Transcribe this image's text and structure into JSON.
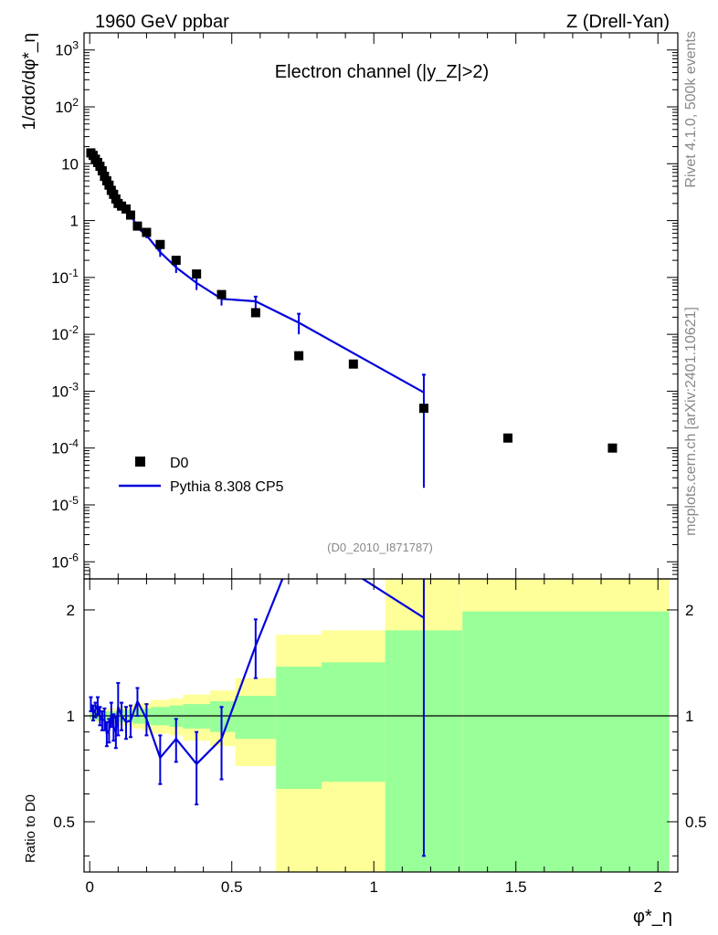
{
  "header": {
    "left": "1960 GeV ppbar",
    "right": "Z (Drell-Yan)"
  },
  "side_text": {
    "rivet": "Rivet 4.1.0,  500k events",
    "mcplots": "mcplots.cern.ch [arXiv:2401.10621]"
  },
  "colors": {
    "data_marker": "#000000",
    "mc_line": "#0000dd",
    "band_outer": "#ffff99",
    "band_inner": "#99ff99"
  },
  "chart_data": [
    {
      "type": "scatter",
      "title": "Electron channel (|y_Z|>2)",
      "annotation": "(D0_2010_I871787)",
      "ylabel": "1/σdσ/dφ*_η",
      "yscale": "log",
      "ylim": [
        5e-07,
        2000
      ],
      "xlim": [
        -0.02,
        2.07
      ],
      "ytick_labels": [
        "10^-6",
        "10^-5",
        "10^-4",
        "10^-3",
        "10^-2",
        "10^-1",
        "1",
        "10",
        "10^2",
        "10^3"
      ],
      "legend": {
        "position": "bottom-left",
        "entries": [
          "D0",
          "Pythia 8.308 CP5"
        ]
      },
      "series": [
        {
          "name": "D0",
          "style": "markers",
          "x": [
            0.004,
            0.012,
            0.02,
            0.028,
            0.036,
            0.044,
            0.052,
            0.06,
            0.068,
            0.076,
            0.084,
            0.092,
            0.1,
            0.112,
            0.128,
            0.144,
            0.168,
            0.2,
            0.248,
            0.304,
            0.376,
            0.464,
            0.584,
            0.736,
            0.928,
            1.176,
            1.472,
            1.84
          ],
          "y": [
            15.5,
            14.0,
            12.0,
            10.5,
            9.0,
            7.5,
            6.0,
            5.0,
            4.2,
            3.4,
            2.9,
            2.4,
            2.0,
            1.8,
            1.6,
            1.25,
            0.8,
            0.62,
            0.38,
            0.2,
            0.115,
            0.05,
            0.024,
            0.0042,
            0.003,
            0.0005,
            0.00015,
            0.0001
          ]
        },
        {
          "name": "Pythia 8.308 CP5",
          "style": "line",
          "x": [
            0.004,
            0.012,
            0.02,
            0.028,
            0.036,
            0.044,
            0.052,
            0.06,
            0.068,
            0.076,
            0.084,
            0.092,
            0.1,
            0.112,
            0.128,
            0.144,
            0.168,
            0.2,
            0.248,
            0.304,
            0.376,
            0.464,
            0.584,
            0.736,
            1.176
          ],
          "y": [
            16.5,
            14.0,
            13.0,
            10.5,
            8.5,
            7.0,
            6.0,
            4.3,
            3.8,
            3.4,
            2.7,
            2.2,
            2.1,
            1.8,
            1.6,
            1.3,
            0.75,
            0.55,
            0.28,
            0.15,
            0.08,
            0.042,
            0.038,
            0.016,
            0.00095
          ],
          "err_low": [
            0.8,
            0.7,
            0.6,
            0.5,
            0.5,
            0.4,
            0.4,
            0.3,
            0.3,
            0.3,
            0.2,
            0.2,
            0.2,
            0.15,
            0.15,
            0.12,
            0.08,
            0.06,
            0.05,
            0.03,
            0.02,
            0.01,
            0.01,
            0.006,
            0.00093
          ],
          "err_high": [
            0.8,
            0.7,
            0.6,
            0.5,
            0.5,
            0.4,
            0.4,
            0.3,
            0.3,
            0.3,
            0.2,
            0.2,
            0.2,
            0.15,
            0.15,
            0.12,
            0.08,
            0.06,
            0.05,
            0.03,
            0.02,
            0.01,
            0.008,
            0.007,
            0.001
          ]
        }
      ]
    },
    {
      "type": "line",
      "ylabel": "Ratio to D0",
      "xlabel": "φ*_η",
      "yscale": "log",
      "ylim": [
        0.36,
        2.45
      ],
      "xlim": [
        -0.02,
        2.07
      ],
      "xtick_labels": [
        "0",
        "0.5",
        "1",
        "1.5",
        "2"
      ],
      "ytick_labels": [
        "0.5",
        "1",
        "2"
      ],
      "reference_line": 1,
      "uncertainty_bands": {
        "edges": [
          0.0,
          0.008,
          0.016,
          0.024,
          0.032,
          0.04,
          0.048,
          0.056,
          0.064,
          0.072,
          0.08,
          0.088,
          0.096,
          0.104,
          0.12,
          0.136,
          0.152,
          0.184,
          0.216,
          0.28,
          0.328,
          0.424,
          0.512,
          0.656,
          0.816,
          1.04,
          1.312,
          2.04
        ],
        "outer_low": [
          0.97,
          0.97,
          0.96,
          0.96,
          0.96,
          0.96,
          0.95,
          0.95,
          0.95,
          0.95,
          0.95,
          0.95,
          0.95,
          0.94,
          0.94,
          0.93,
          0.92,
          0.91,
          0.89,
          0.88,
          0.85,
          0.82,
          0.72,
          0.3,
          0.3,
          0.3,
          0.3
        ],
        "outer_high": [
          1.03,
          1.03,
          1.04,
          1.04,
          1.04,
          1.04,
          1.05,
          1.05,
          1.05,
          1.05,
          1.05,
          1.05,
          1.05,
          1.06,
          1.06,
          1.07,
          1.08,
          1.09,
          1.11,
          1.12,
          1.15,
          1.18,
          1.28,
          1.7,
          1.75,
          2.6,
          2.6
        ],
        "inner_low": [
          0.98,
          0.98,
          0.97,
          0.97,
          0.97,
          0.97,
          0.97,
          0.97,
          0.97,
          0.97,
          0.97,
          0.97,
          0.97,
          0.96,
          0.96,
          0.96,
          0.95,
          0.95,
          0.94,
          0.93,
          0.92,
          0.9,
          0.86,
          0.62,
          0.65,
          0.3,
          0.3
        ],
        "inner_high": [
          1.02,
          1.02,
          1.03,
          1.03,
          1.03,
          1.03,
          1.03,
          1.03,
          1.03,
          1.03,
          1.03,
          1.03,
          1.03,
          1.04,
          1.04,
          1.04,
          1.05,
          1.05,
          1.06,
          1.07,
          1.08,
          1.1,
          1.14,
          1.38,
          1.42,
          1.75,
          1.98
        ]
      },
      "series": [
        {
          "name": "Pythia 8.308 CP5",
          "x": [
            0.004,
            0.012,
            0.02,
            0.028,
            0.036,
            0.044,
            0.052,
            0.06,
            0.068,
            0.076,
            0.084,
            0.092,
            0.1,
            0.112,
            0.128,
            0.144,
            0.168,
            0.2,
            0.248,
            0.304,
            0.376,
            0.464,
            0.584,
            0.736,
            1.176
          ],
          "y": [
            1.08,
            1.02,
            1.04,
            1.07,
            1.0,
            0.97,
            0.98,
            0.89,
            0.91,
            1.01,
            0.93,
            0.9,
            1.06,
            1.0,
            0.96,
            0.97,
            1.1,
            0.98,
            0.76,
            0.86,
            0.73,
            0.86,
            1.58,
            3.2,
            1.9
          ],
          "err": [
            0.05,
            0.05,
            0.05,
            0.06,
            0.06,
            0.06,
            0.07,
            0.07,
            0.07,
            0.08,
            0.08,
            0.09,
            0.18,
            0.09,
            0.1,
            0.1,
            0.1,
            0.1,
            0.12,
            0.12,
            0.17,
            0.2,
            0.3,
            0.5,
            1.5
          ]
        }
      ]
    }
  ]
}
